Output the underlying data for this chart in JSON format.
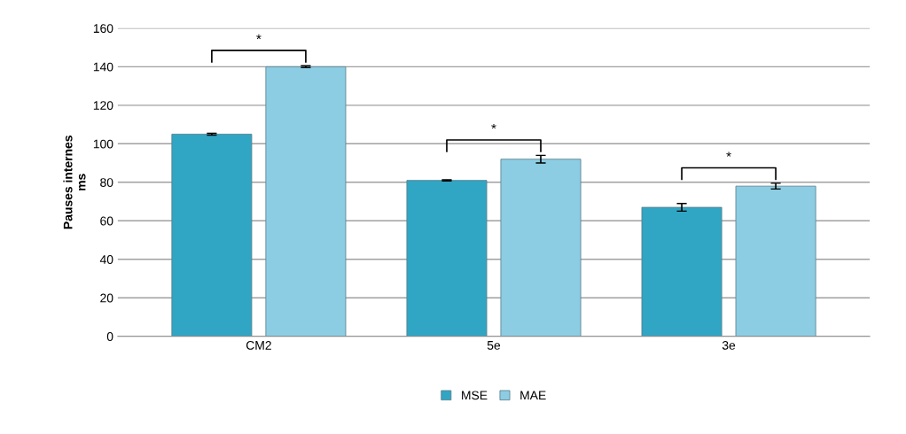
{
  "chart_data": {
    "type": "bar",
    "ylabel": "Pauses internes\nms",
    "categories": [
      "CM2",
      "5e",
      "3e"
    ],
    "series": [
      {
        "name": "MSE",
        "color": "#31a5c4",
        "values": [
          105,
          81,
          67
        ],
        "errors": [
          0.5,
          0.3,
          2
        ]
      },
      {
        "name": "MAE",
        "color": "#8ccde3",
        "values": [
          140,
          92,
          78
        ],
        "errors": [
          0.5,
          2,
          1.5
        ]
      }
    ],
    "ylim": [
      0,
      160
    ],
    "yticks": [
      0,
      20,
      40,
      60,
      80,
      100,
      120,
      140,
      160
    ],
    "grid": "y",
    "legend": "bottom",
    "annotations": [
      "*",
      "*",
      "*"
    ]
  }
}
